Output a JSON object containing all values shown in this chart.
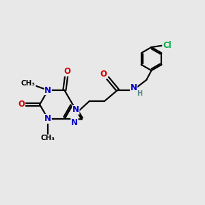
{
  "background_color": "#e8e8e8",
  "atom_color_N": "#0000cc",
  "atom_color_O": "#cc0000",
  "atom_color_Cl": "#00aa44",
  "atom_color_H": "#558888",
  "line_color": "#000000",
  "line_width": 1.6,
  "font_size_atom": 8.5,
  "fig_width": 3.0,
  "fig_height": 3.0,
  "dpi": 100,
  "xlim": [
    0,
    10
  ],
  "ylim": [
    0,
    10
  ]
}
